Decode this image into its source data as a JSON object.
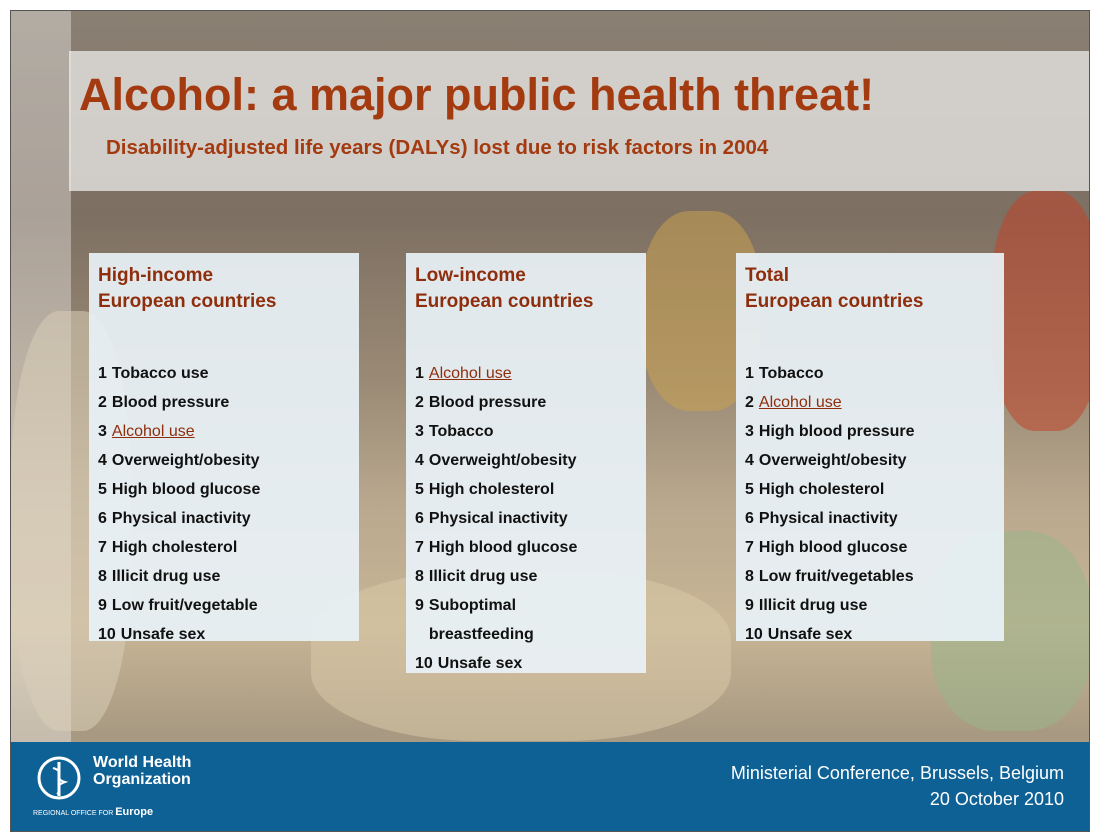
{
  "slide": {
    "title": "Alcohol: a major public health threat!",
    "subtitle": "Disability-adjusted life years (DALYs) lost due to risk factors in 2004",
    "columns": [
      {
        "heading": [
          "High-income",
          "European countries"
        ],
        "items": [
          {
            "rank": "1",
            "text": "Tobacco use"
          },
          {
            "rank": "2",
            "text": "Blood pressure"
          },
          {
            "rank": "3",
            "text": "Alcohol use",
            "highlighted": true
          },
          {
            "rank": "4",
            "text": "Overweight/obesity"
          },
          {
            "rank": "5",
            "text": "High blood glucose"
          },
          {
            "rank": "6",
            "text": "Physical inactivity"
          },
          {
            "rank": "7",
            "text": "High cholesterol"
          },
          {
            "rank": "8",
            "text": "Illicit drug use"
          },
          {
            "rank": "9",
            "text": "Low fruit/vegetable"
          },
          {
            "rank": "10",
            "text": "Unsafe sex"
          }
        ]
      },
      {
        "heading": [
          "Low-income",
          "European countries"
        ],
        "items": [
          {
            "rank": "1",
            "text": "Alcohol use",
            "highlighted": true
          },
          {
            "rank": "2",
            "text": "Blood pressure"
          },
          {
            "rank": "3",
            "text": "Tobacco"
          },
          {
            "rank": "4",
            "text": "Overweight/obesity"
          },
          {
            "rank": "5",
            "text": "High cholesterol"
          },
          {
            "rank": "6",
            "text": "Physical inactivity"
          },
          {
            "rank": "7",
            "text": "High blood glucose"
          },
          {
            "rank": "8",
            "text": "Illicit drug use"
          },
          {
            "rank": "9",
            "text": "Suboptimal breastfeeding"
          },
          {
            "rank": "10",
            "text": "Unsafe sex"
          }
        ]
      },
      {
        "heading": [
          "Total",
          "European countries"
        ],
        "items": [
          {
            "rank": "1",
            "text": "Tobacco"
          },
          {
            "rank": "2",
            "text": "Alcohol use",
            "highlighted": true
          },
          {
            "rank": "3",
            "text": "High blood pressure"
          },
          {
            "rank": "4",
            "text": "Overweight/obesity"
          },
          {
            "rank": "5",
            "text": "High cholesterol"
          },
          {
            "rank": "6",
            "text": "Physical inactivity"
          },
          {
            "rank": "7",
            "text": "High blood glucose"
          },
          {
            "rank": "8",
            "text": "Low fruit/vegetables"
          },
          {
            "rank": "9",
            "text": "Illicit drug use"
          },
          {
            "rank": "10",
            "text": "Unsafe sex"
          }
        ]
      }
    ]
  },
  "footer": {
    "logo": [
      "World Health",
      "Organization"
    ],
    "region_prefix": "REGIONAL OFFICE FOR",
    "region": "Europe",
    "event": [
      "Ministerial Conference, Brussels, Belgium",
      "20 October 2010"
    ]
  }
}
